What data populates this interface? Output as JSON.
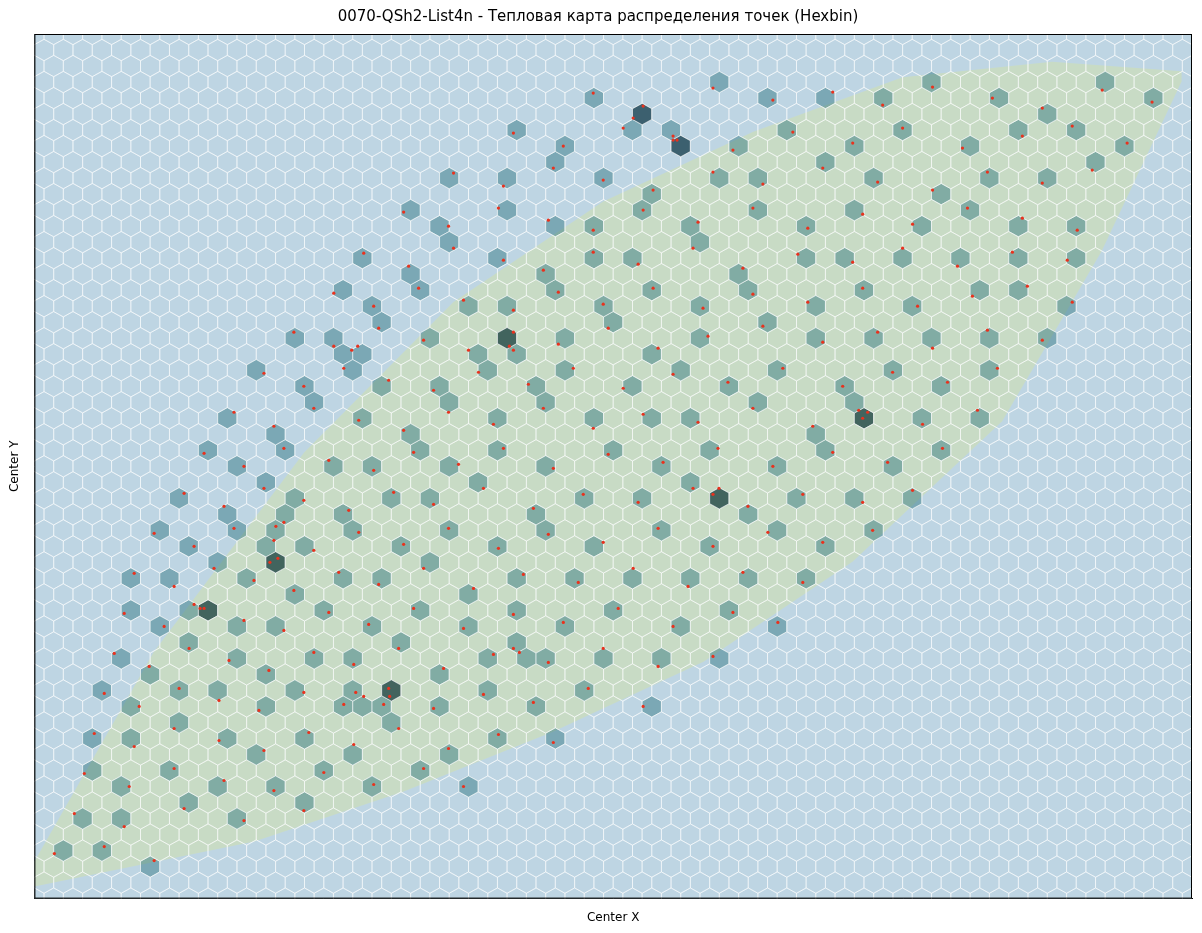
{
  "chart_data": {
    "type": "hexbin",
    "title": "0070-QSh2-List4n - Тепловая карта распределения точек (Hexbin)",
    "x_label": "Center X",
    "y_label": "Center Y",
    "xlim": [
      0,
      1160
    ],
    "ylim": [
      0,
      864
    ],
    "gridsize": [
      60,
      27
    ],
    "tick_labels": false,
    "grid": false,
    "color": "#e8321e",
    "points": [
      [
        560,
        805
      ],
      [
        610,
        792
      ],
      [
        680,
        810
      ],
      [
        740,
        798
      ],
      [
        800,
        806
      ],
      [
        850,
        793
      ],
      [
        900,
        811
      ],
      [
        960,
        800
      ],
      [
        1010,
        790
      ],
      [
        1070,
        808
      ],
      [
        1120,
        796
      ],
      [
        480,
        765
      ],
      [
        530,
        752
      ],
      [
        590,
        770
      ],
      [
        640,
        758
      ],
      [
        700,
        748
      ],
      [
        760,
        766
      ],
      [
        820,
        755
      ],
      [
        870,
        770
      ],
      [
        930,
        750
      ],
      [
        990,
        762
      ],
      [
        1040,
        772
      ],
      [
        1095,
        755
      ],
      [
        420,
        725
      ],
      [
        470,
        712
      ],
      [
        520,
        730
      ],
      [
        570,
        718
      ],
      [
        620,
        708
      ],
      [
        680,
        726
      ],
      [
        730,
        714
      ],
      [
        790,
        730
      ],
      [
        845,
        716
      ],
      [
        900,
        708
      ],
      [
        955,
        726
      ],
      [
        1010,
        715
      ],
      [
        1060,
        728
      ],
      [
        370,
        686
      ],
      [
        415,
        672
      ],
      [
        465,
        690
      ],
      [
        515,
        678
      ],
      [
        560,
        668
      ],
      [
        610,
        688
      ],
      [
        665,
        676
      ],
      [
        720,
        690
      ],
      [
        775,
        670
      ],
      [
        830,
        684
      ],
      [
        880,
        674
      ],
      [
        935,
        690
      ],
      [
        990,
        680
      ],
      [
        1045,
        668
      ],
      [
        330,
        645
      ],
      [
        375,
        632
      ],
      [
        420,
        650
      ],
      [
        470,
        638
      ],
      [
        510,
        628
      ],
      [
        560,
        646
      ],
      [
        605,
        634
      ],
      [
        660,
        650
      ],
      [
        710,
        630
      ],
      [
        765,
        644
      ],
      [
        820,
        636
      ],
      [
        870,
        650
      ],
      [
        925,
        632
      ],
      [
        980,
        646
      ],
      [
        1035,
        638
      ],
      [
        300,
        605
      ],
      [
        340,
        592
      ],
      [
        385,
        610
      ],
      [
        430,
        598
      ],
      [
        480,
        588
      ],
      [
        525,
        606
      ],
      [
        570,
        594
      ],
      [
        620,
        610
      ],
      [
        670,
        590
      ],
      [
        720,
        604
      ],
      [
        775,
        596
      ],
      [
        830,
        610
      ],
      [
        885,
        592
      ],
      [
        940,
        602
      ],
      [
        995,
        612
      ],
      [
        1040,
        596
      ],
      [
        260,
        566
      ],
      [
        300,
        552
      ],
      [
        345,
        570
      ],
      [
        390,
        558
      ],
      [
        435,
        548
      ],
      [
        480,
        566
      ],
      [
        525,
        554
      ],
      [
        575,
        570
      ],
      [
        625,
        550
      ],
      [
        675,
        562
      ],
      [
        730,
        572
      ],
      [
        790,
        556
      ],
      [
        845,
        566
      ],
      [
        900,
        550
      ],
      [
        955,
        568
      ],
      [
        1010,
        558
      ],
      [
        230,
        525
      ],
      [
        270,
        512
      ],
      [
        310,
        530
      ],
      [
        355,
        518
      ],
      [
        400,
        508
      ],
      [
        445,
        526
      ],
      [
        495,
        514
      ],
      [
        540,
        530
      ],
      [
        590,
        510
      ],
      [
        640,
        524
      ],
      [
        695,
        516
      ],
      [
        750,
        530
      ],
      [
        810,
        512
      ],
      [
        860,
        526
      ],
      [
        915,
        516
      ],
      [
        965,
        530
      ],
      [
        200,
        486
      ],
      [
        240,
        472
      ],
      [
        280,
        490
      ],
      [
        325,
        478
      ],
      [
        370,
        468
      ],
      [
        415,
        486
      ],
      [
        460,
        474
      ],
      [
        510,
        490
      ],
      [
        560,
        470
      ],
      [
        610,
        484
      ],
      [
        665,
        476
      ],
      [
        720,
        490
      ],
      [
        780,
        472
      ],
      [
        835,
        486
      ],
      [
        890,
        474
      ],
      [
        945,
        488
      ],
      [
        170,
        445
      ],
      [
        210,
        432
      ],
      [
        250,
        450
      ],
      [
        295,
        438
      ],
      [
        340,
        428
      ],
      [
        380,
        446
      ],
      [
        425,
        434
      ],
      [
        470,
        450
      ],
      [
        520,
        430
      ],
      [
        575,
        444
      ],
      [
        630,
        436
      ],
      [
        685,
        450
      ],
      [
        740,
        432
      ],
      [
        800,
        446
      ],
      [
        855,
        436
      ],
      [
        910,
        450
      ],
      [
        150,
        405
      ],
      [
        190,
        392
      ],
      [
        230,
        410
      ],
      [
        270,
        398
      ],
      [
        315,
        388
      ],
      [
        360,
        406
      ],
      [
        400,
        394
      ],
      [
        450,
        410
      ],
      [
        500,
        390
      ],
      [
        550,
        404
      ],
      [
        605,
        396
      ],
      [
        660,
        410
      ],
      [
        715,
        392
      ],
      [
        770,
        404
      ],
      [
        830,
        396
      ],
      [
        880,
        408
      ],
      [
        120,
        365
      ],
      [
        160,
        352
      ],
      [
        200,
        370
      ],
      [
        240,
        358
      ],
      [
        280,
        348
      ],
      [
        325,
        366
      ],
      [
        370,
        354
      ],
      [
        415,
        370
      ],
      [
        465,
        350
      ],
      [
        515,
        364
      ],
      [
        570,
        356
      ],
      [
        625,
        370
      ],
      [
        680,
        352
      ],
      [
        735,
        366
      ],
      [
        790,
        356
      ],
      [
        840,
        368
      ],
      [
        100,
        325
      ],
      [
        140,
        312
      ],
      [
        180,
        330
      ],
      [
        220,
        318
      ],
      [
        260,
        308
      ],
      [
        305,
        326
      ],
      [
        345,
        314
      ],
      [
        390,
        330
      ],
      [
        440,
        310
      ],
      [
        490,
        324
      ],
      [
        545,
        316
      ],
      [
        600,
        330
      ],
      [
        655,
        312
      ],
      [
        710,
        326
      ],
      [
        770,
        316
      ],
      [
        90,
        285
      ],
      [
        130,
        272
      ],
      [
        170,
        290
      ],
      [
        210,
        278
      ],
      [
        250,
        268
      ],
      [
        295,
        286
      ],
      [
        335,
        274
      ],
      [
        380,
        290
      ],
      [
        430,
        270
      ],
      [
        480,
        284
      ],
      [
        530,
        276
      ],
      [
        585,
        290
      ],
      [
        640,
        272
      ],
      [
        700,
        286
      ],
      [
        745,
        276
      ],
      [
        80,
        245
      ],
      [
        115,
        232
      ],
      [
        155,
        250
      ],
      [
        195,
        238
      ],
      [
        235,
        228
      ],
      [
        280,
        246
      ],
      [
        320,
        234
      ],
      [
        365,
        250
      ],
      [
        410,
        230
      ],
      [
        460,
        244
      ],
      [
        515,
        236
      ],
      [
        570,
        250
      ],
      [
        625,
        232
      ],
      [
        680,
        242
      ],
      [
        70,
        205
      ],
      [
        105,
        192
      ],
      [
        145,
        210
      ],
      [
        185,
        198
      ],
      [
        225,
        188
      ],
      [
        270,
        206
      ],
      [
        310,
        194
      ],
      [
        355,
        210
      ],
      [
        400,
        190
      ],
      [
        450,
        204
      ],
      [
        500,
        196
      ],
      [
        555,
        210
      ],
      [
        610,
        192
      ],
      [
        60,
        165
      ],
      [
        100,
        152
      ],
      [
        140,
        170
      ],
      [
        185,
        158
      ],
      [
        230,
        148
      ],
      [
        275,
        166
      ],
      [
        320,
        154
      ],
      [
        365,
        170
      ],
      [
        415,
        150
      ],
      [
        465,
        164
      ],
      [
        520,
        156
      ],
      [
        50,
        125
      ],
      [
        95,
        112
      ],
      [
        140,
        130
      ],
      [
        190,
        118
      ],
      [
        240,
        108
      ],
      [
        290,
        126
      ],
      [
        340,
        114
      ],
      [
        390,
        130
      ],
      [
        430,
        112
      ],
      [
        40,
        85
      ],
      [
        90,
        72
      ],
      [
        150,
        90
      ],
      [
        210,
        78
      ],
      [
        270,
        88
      ],
      [
        20,
        45
      ],
      [
        70,
        52
      ],
      [
        120,
        38
      ],
      [
        242,
        372
      ],
      [
        250,
        376
      ],
      [
        236,
        336
      ],
      [
        244,
        340
      ],
      [
        160,
        294
      ],
      [
        166,
        290
      ],
      [
        322,
        206
      ],
      [
        330,
        202
      ],
      [
        356,
        202
      ],
      [
        350,
        194
      ],
      [
        480,
        250
      ],
      [
        486,
        246
      ],
      [
        680,
        404
      ],
      [
        686,
        410
      ],
      [
        600,
        780
      ],
      [
        640,
        762
      ],
      [
        644,
        758
      ],
      [
        480,
        548
      ],
      [
        476,
        552
      ],
      [
        826,
        488
      ],
      [
        830,
        480
      ],
      [
        318,
        548
      ],
      [
        324,
        552
      ]
    ]
  }
}
